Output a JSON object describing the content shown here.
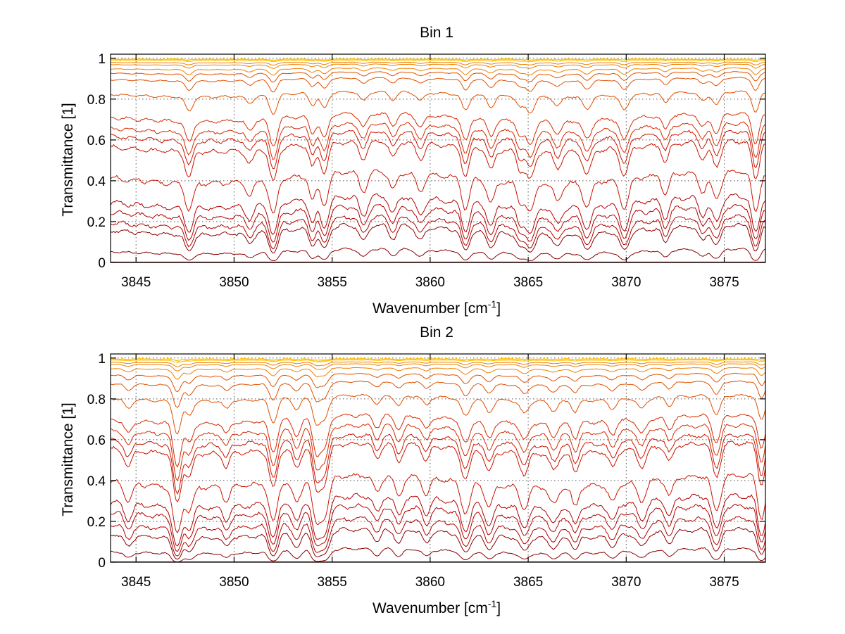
{
  "chart_data": [
    {
      "type": "line",
      "title": "Bin 1",
      "xlabel": "Wavenumber [cm",
      "xlabel_sup": "-1",
      "xlabel_end": "]",
      "ylabel": "Transmittance [1]",
      "xlim": [
        3843.7,
        3877.1
      ],
      "ylim": [
        0,
        1.02
      ],
      "xticks": [
        3845,
        3850,
        3855,
        3860,
        3865,
        3870,
        3875
      ],
      "yticks": [
        0,
        0.2,
        0.4,
        0.6,
        0.8,
        1
      ],
      "ytick_labels": [
        "0",
        "0.2",
        "0.4",
        "0.6",
        "0.8",
        "1"
      ],
      "grid": true,
      "series_colors": [
        "#8b0000",
        "#b10000",
        "#c81400",
        "#d42a00",
        "#e05000",
        "#ee8000",
        "#ffc000"
      ],
      "series_levels": [
        0.0,
        0.06,
        0.17,
        0.21,
        0.26,
        0.31,
        0.43,
        0.58,
        0.63,
        0.67,
        0.72,
        0.83,
        0.9,
        0.93,
        0.95,
        0.97,
        0.98,
        0.99,
        0.995,
        1.0
      ],
      "absorption_lines": [
        3847.7,
        3850.8,
        3852.0,
        3854.0,
        3854.6,
        3856.6,
        3858.1,
        3859.5,
        3861.8,
        3863.1,
        3864.6,
        3865.1,
        3866.5,
        3868.0,
        3869.9,
        3872.0,
        3873.9,
        3874.6,
        3876.6
      ],
      "line_strengths": [
        0.5,
        0.25,
        0.7,
        0.45,
        0.6,
        0.35,
        0.3,
        0.3,
        0.6,
        0.4,
        0.35,
        0.55,
        0.3,
        0.45,
        0.55,
        0.35,
        0.35,
        0.5,
        0.8
      ]
    },
    {
      "type": "line",
      "title": "Bin 2",
      "xlabel": "Wavenumber [cm",
      "xlabel_sup": "-1",
      "xlabel_end": "]",
      "ylabel": "Transmittance [1]",
      "xlim": [
        3843.7,
        3877.1
      ],
      "ylim": [
        0,
        1.02
      ],
      "xticks": [
        3845,
        3850,
        3855,
        3860,
        3865,
        3870,
        3875
      ],
      "yticks": [
        0,
        0.2,
        0.4,
        0.6,
        0.8,
        1
      ],
      "ytick_labels": [
        "0",
        "0.2",
        "0.4",
        "0.6",
        "0.8",
        "1"
      ],
      "grid": true,
      "series_colors": [
        "#8b0000",
        "#b10000",
        "#c81400",
        "#d42a00",
        "#e05000",
        "#ee8000",
        "#ffc000"
      ],
      "series_levels": [
        0.0,
        0.06,
        0.15,
        0.2,
        0.26,
        0.31,
        0.41,
        0.57,
        0.61,
        0.66,
        0.71,
        0.81,
        0.88,
        0.92,
        0.95,
        0.97,
        0.98,
        0.99,
        0.995,
        1.0
      ],
      "absorption_lines": [
        3844.6,
        3847.1,
        3847.7,
        3849.6,
        3852.0,
        3853.2,
        3854.2,
        3854.6,
        3857.3,
        3858.4,
        3859.8,
        3861.8,
        3863.0,
        3864.8,
        3866.3,
        3867.4,
        3869.3,
        3870.8,
        3872.2,
        3874.6,
        3876.9
      ],
      "line_strengths": [
        0.3,
        1.1,
        0.45,
        0.25,
        0.8,
        0.4,
        0.9,
        0.8,
        0.3,
        0.35,
        0.3,
        0.6,
        0.4,
        0.4,
        0.3,
        0.35,
        0.3,
        0.35,
        0.3,
        0.7,
        0.9
      ]
    }
  ]
}
